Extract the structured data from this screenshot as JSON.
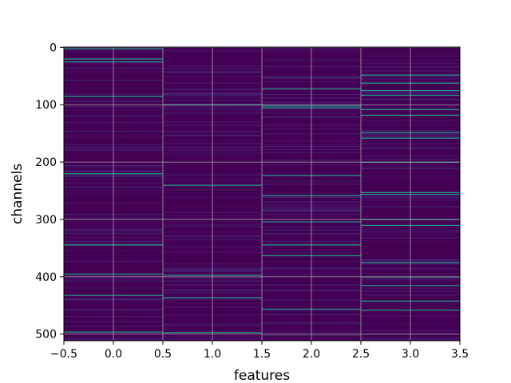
{
  "chart_data": {
    "type": "heatmap",
    "title": "",
    "xlabel": "features",
    "ylabel": "channels",
    "x_categories": [
      0,
      1,
      2,
      3
    ],
    "y_count": 512,
    "xlim": [
      -0.5,
      3.5
    ],
    "ylim": [
      511.5,
      -0.5
    ],
    "y_inverted": true,
    "grid": true,
    "colormap": "viridis",
    "background_color": "#440154",
    "x_ticks": [
      "−0.5",
      "0.0",
      "0.5",
      "1.0",
      "1.5",
      "2.0",
      "2.5",
      "3.0",
      "3.5"
    ],
    "y_ticks": [
      "0",
      "100",
      "200",
      "300",
      "400",
      "500"
    ],
    "bright_rows": [
      {
        "feature": 0,
        "channels": [
          2,
          20,
          25,
          85,
          220,
          344,
          395,
          432,
          496
        ]
      },
      {
        "feature": 1,
        "channels": [
          100,
          240,
          397,
          436,
          497
        ]
      },
      {
        "feature": 2,
        "channels": [
          72,
          102,
          105,
          223,
          258,
          304,
          344,
          363,
          456
        ]
      },
      {
        "feature": 3,
        "channels": [
          48,
          62,
          75,
          83,
          108,
          118,
          148,
          158,
          200,
          253,
          256,
          300,
          310,
          375,
          400,
          415,
          442,
          458
        ]
      }
    ]
  }
}
